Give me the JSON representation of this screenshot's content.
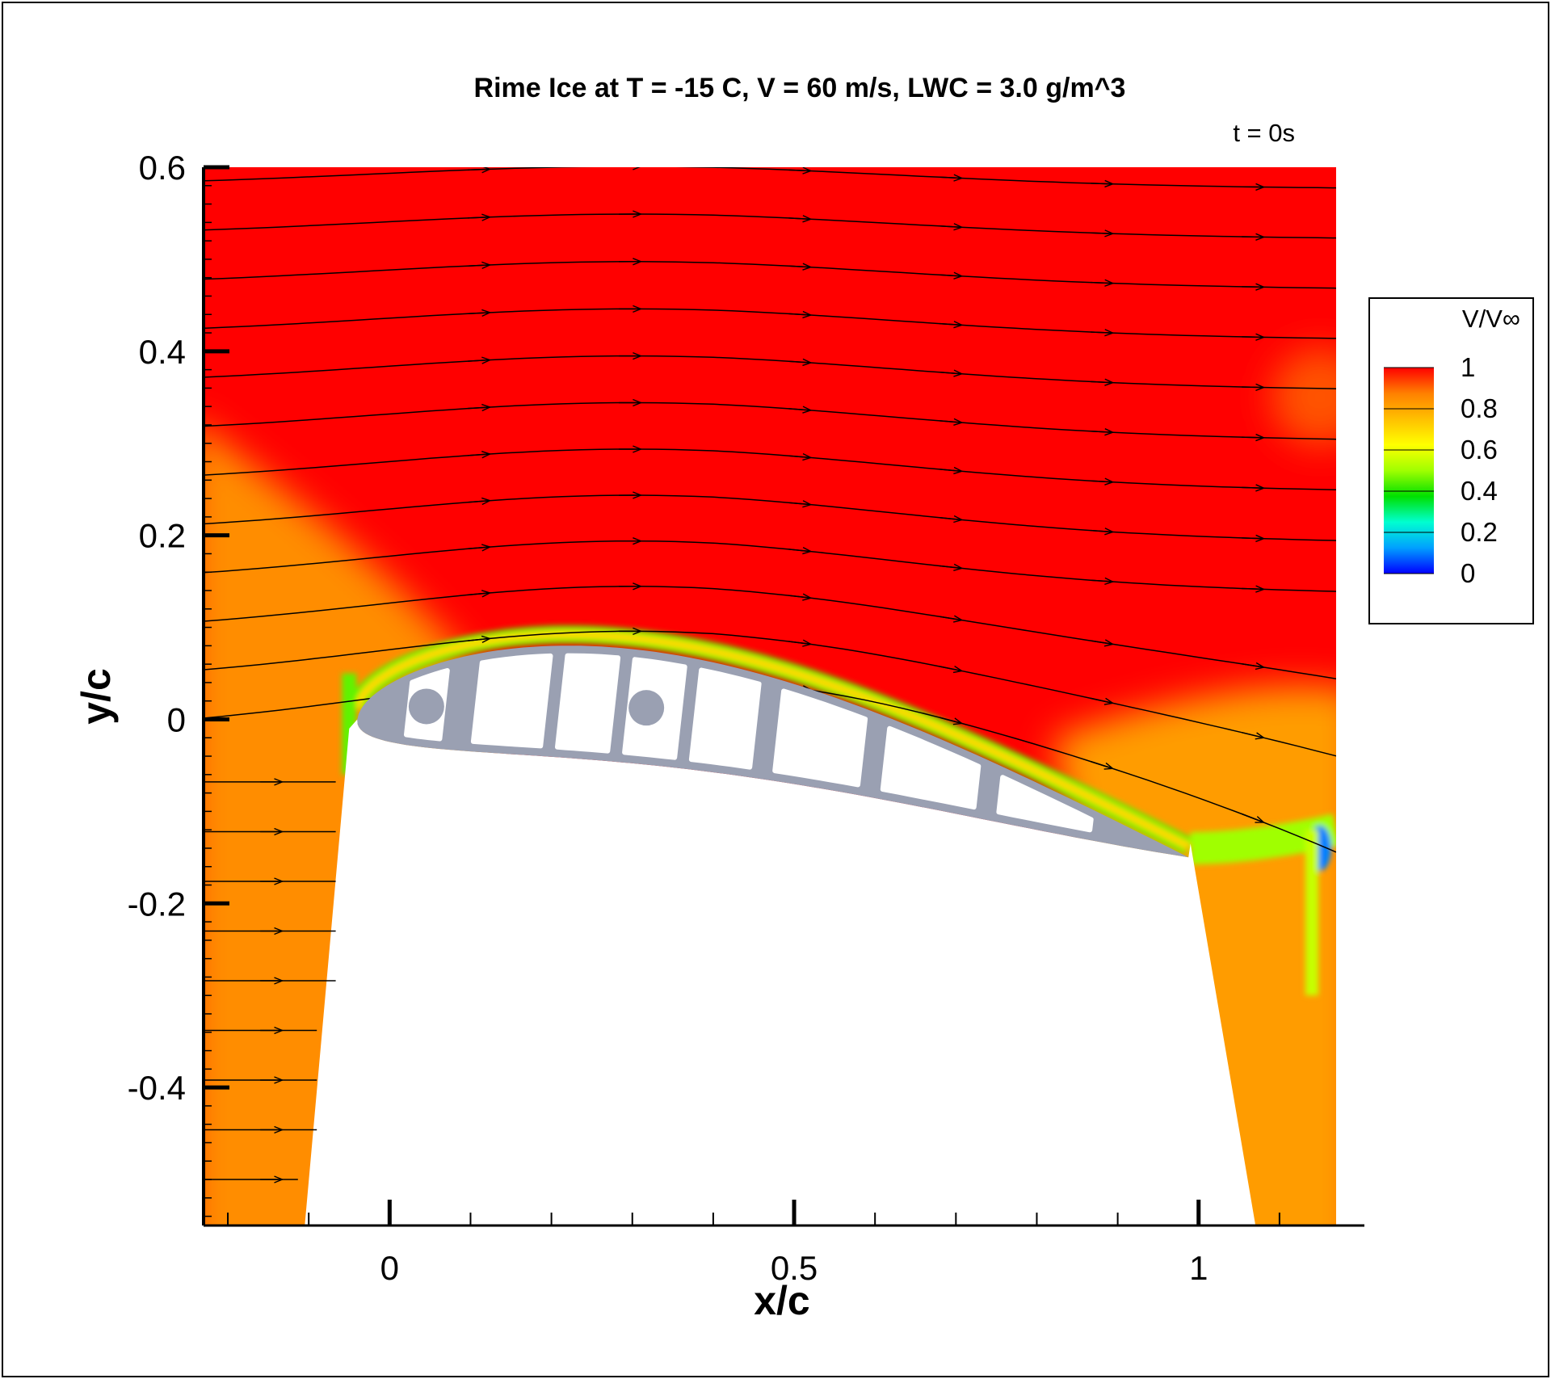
{
  "chart_data": {
    "type": "heatmap",
    "title": "Rime Ice at T = -15 C, V = 60 m/s, LWC = 3.0 g/m^3",
    "time_label": "t = 0s",
    "xlabel": "x/c",
    "ylabel": "y/c",
    "xlim": [
      -0.23,
      1.17
    ],
    "ylim": [
      -0.55,
      0.6
    ],
    "x_ticks": [
      0,
      0.5,
      1
    ],
    "x_tick_labels": [
      "0",
      "0.5",
      "1"
    ],
    "y_ticks": [
      0.6,
      0.4,
      0.2,
      0,
      -0.2,
      -0.4
    ],
    "y_tick_labels": [
      "0.6",
      "0.4",
      "0.2",
      "0",
      "-0.2",
      "-0.4"
    ],
    "colorbar": {
      "label": "V/V∞",
      "ticks": [
        1,
        0.8,
        0.6,
        0.4,
        0.2,
        0
      ],
      "tick_labels": [
        "1",
        "0.8",
        "0.6",
        "0.4",
        "0.2",
        "0"
      ],
      "colors": [
        "#0000ff",
        "#00a0ff",
        "#00ffd0",
        "#00e000",
        "#a0ff00",
        "#ffff00",
        "#ffc000",
        "#ff8000",
        "#ff0000"
      ]
    },
    "field": {
      "freestream_value": 1.0,
      "left_shear_layer_value": 0.85,
      "wake_value": 0.82,
      "boundary_layer_min": 0.1
    },
    "airfoil": {
      "leading_edge": [
        -0.04,
        0.0
      ],
      "trailing_edge": [
        0.99,
        -0.13
      ],
      "fill_color": "#9aa0b2"
    },
    "streamlines": {
      "count": 21,
      "y_start_min": -0.5,
      "y_start_max": 0.58
    },
    "legend_position": "right"
  }
}
